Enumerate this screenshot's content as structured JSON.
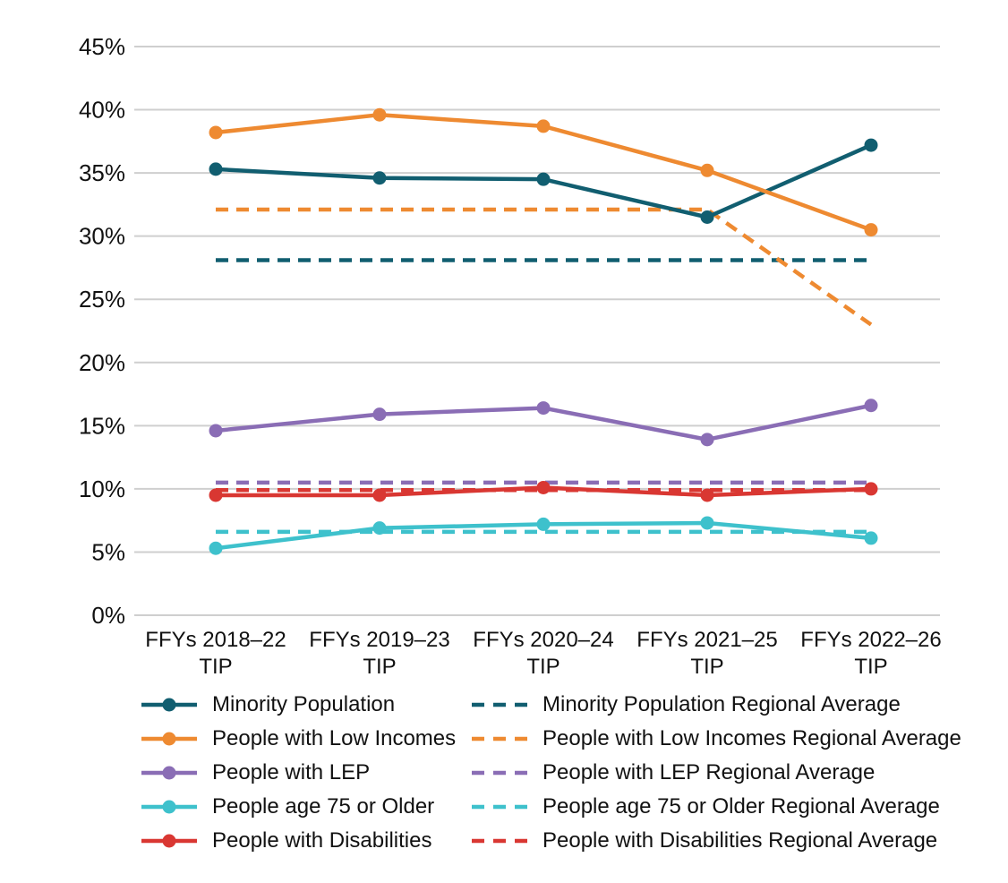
{
  "chart_data": {
    "type": "line",
    "title": "",
    "xlabel": "",
    "ylabel": "",
    "categories": [
      "FFYs 2018–22",
      "FFYs 2019–23",
      "FFYs 2020–24",
      "FFYs 2021–25",
      "FFYs 2022–26"
    ],
    "category_suffix": "TIP",
    "ylim": [
      0,
      45
    ],
    "ytick_step": 5,
    "ytick_format": "percent",
    "grid": "horizontal-only",
    "legend_position": "bottom, two columns: solid series left, dashed regional averages right",
    "series": [
      {
        "name": "Minority Population",
        "style": "solid",
        "color": "#115e70",
        "values": [
          35.3,
          34.6,
          34.5,
          31.5,
          37.2
        ]
      },
      {
        "name": "People with Low Incomes",
        "style": "solid",
        "color": "#ee8a31",
        "values": [
          38.2,
          39.6,
          38.7,
          35.2,
          30.5
        ]
      },
      {
        "name": "People with LEP",
        "style": "solid",
        "color": "#8a6db5",
        "values": [
          14.6,
          15.9,
          16.4,
          13.9,
          16.6
        ]
      },
      {
        "name": "People age 75 or Older",
        "style": "solid",
        "color": "#3ec1cc",
        "values": [
          5.3,
          6.9,
          7.2,
          7.3,
          6.1
        ]
      },
      {
        "name": "People with Disabilities",
        "style": "solid",
        "color": "#d93732",
        "values": [
          9.5,
          9.5,
          10.1,
          9.5,
          10.0
        ]
      },
      {
        "name": "Minority Population Regional Average",
        "style": "dashed",
        "color": "#115e70",
        "values": [
          28.1,
          28.1,
          28.1,
          28.1,
          28.1
        ]
      },
      {
        "name": "People with Low Incomes Regional Average",
        "style": "dashed",
        "color": "#ee8a31",
        "values": [
          32.1,
          32.1,
          32.1,
          32.1,
          23.0
        ]
      },
      {
        "name": "People with LEP Regional Average",
        "style": "dashed",
        "color": "#8a6db5",
        "values": [
          10.5,
          10.5,
          10.5,
          10.5,
          10.5
        ]
      },
      {
        "name": "People age 75 or Older Regional Average",
        "style": "dashed",
        "color": "#3ec1cc",
        "values": [
          6.6,
          6.6,
          6.6,
          6.6,
          6.6
        ]
      },
      {
        "name": "People with Disabilities Regional Average",
        "style": "dashed",
        "color": "#d93732",
        "values": [
          9.9,
          9.9,
          9.9,
          9.9,
          9.9
        ]
      }
    ]
  },
  "colors": {
    "background": "#ffffff",
    "gridline": "#cfcfcf",
    "text": "#111111"
  }
}
